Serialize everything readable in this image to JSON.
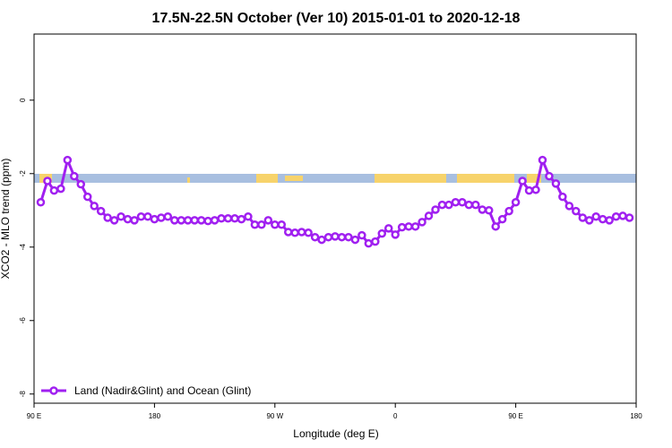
{
  "chart_data": {
    "type": "line",
    "title": "17.5N-22.5N October (Ver 10)   2015-01-01 to 2020-12-18",
    "x_label": "Longitude (deg E)",
    "y_label": "XCO2 - MLO trend (ppm)",
    "xlim": [
      90,
      540
    ],
    "xticks": [
      {
        "value": 90,
        "label": "90 E"
      },
      180,
      {
        "value": 270,
        "label": "90 W"
      },
      {
        "value": 360,
        "label": "0"
      },
      {
        "value": 450,
        "label": "90 E"
      },
      {
        "value": 540,
        "label": "180"
      }
    ],
    "ylim": [
      -8.25,
      1.8
    ],
    "yticks": [
      0,
      -2,
      -4,
      -6,
      -8
    ],
    "legend": "bottom-left",
    "x": [
      95,
      100,
      105,
      110,
      115,
      120,
      125,
      130,
      135,
      140,
      145,
      150,
      155,
      160,
      165,
      170,
      175,
      180,
      185,
      190,
      195,
      200,
      205,
      210,
      215,
      220,
      225,
      230,
      235,
      240,
      245,
      250,
      255,
      260,
      265,
      270,
      275,
      280,
      285,
      290,
      295,
      300,
      305,
      310,
      315,
      320,
      325,
      330,
      335,
      340,
      345,
      350,
      355,
      360,
      365,
      370,
      375,
      380,
      385,
      390,
      395,
      400,
      405,
      410,
      415,
      420,
      425,
      430,
      435,
      440,
      445,
      450,
      455,
      460,
      465,
      470,
      475,
      480,
      485,
      490,
      495,
      500,
      505,
      510,
      515,
      520,
      525,
      530,
      535
    ],
    "series": [
      {
        "name": "Land (Nadir&Glint) and Ocean (Glint)",
        "color": "#a020f0",
        "values": [
          -2.78,
          -2.2,
          -2.46,
          -2.41,
          -1.63,
          -2.07,
          -2.29,
          -2.63,
          -2.88,
          -3.02,
          -3.2,
          -3.27,
          -3.17,
          -3.24,
          -3.27,
          -3.17,
          -3.17,
          -3.24,
          -3.2,
          -3.17,
          -3.27,
          -3.27,
          -3.27,
          -3.27,
          -3.27,
          -3.29,
          -3.27,
          -3.22,
          -3.22,
          -3.22,
          -3.24,
          -3.17,
          -3.39,
          -3.39,
          -3.27,
          -3.39,
          -3.39,
          -3.59,
          -3.61,
          -3.59,
          -3.61,
          -3.73,
          -3.8,
          -3.73,
          -3.71,
          -3.73,
          -3.73,
          -3.8,
          -3.68,
          -3.9,
          -3.85,
          -3.63,
          -3.49,
          -3.66,
          -3.46,
          -3.44,
          -3.44,
          -3.32,
          -3.15,
          -2.98,
          -2.85,
          -2.85,
          -2.78,
          -2.78,
          -2.85,
          -2.85,
          -2.98,
          -3.0,
          -3.44,
          -3.24,
          -3.02,
          -2.78,
          -2.2,
          -2.46,
          -2.44,
          -1.63,
          -2.07,
          -2.27,
          -2.63,
          -2.88,
          -3.02,
          -3.2,
          -3.27,
          -3.17,
          -3.24,
          -3.27,
          -3.17,
          -3.15,
          -3.2
        ]
      }
    ]
  }
}
